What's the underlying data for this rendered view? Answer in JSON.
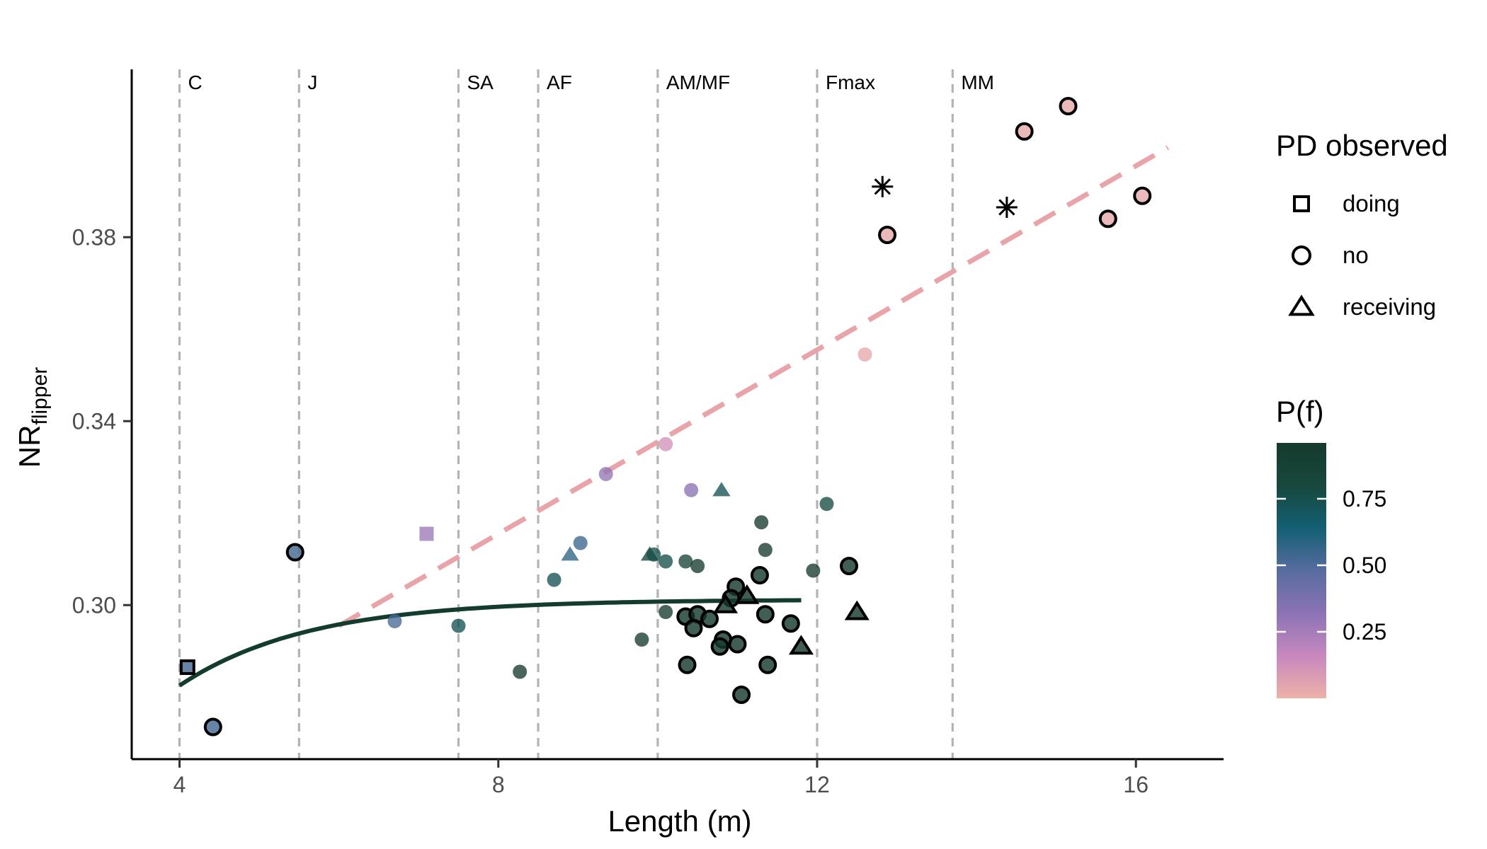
{
  "chart_data": {
    "type": "scatter",
    "xlabel": "Length (m)",
    "ylabel_main": "NR",
    "ylabel_sub": "flipper",
    "xlim": [
      3.4,
      17.1
    ],
    "ylim": [
      0.2665,
      0.4165
    ],
    "x_ticks": [
      4,
      8,
      12,
      16
    ],
    "y_ticks": [
      0.3,
      0.34,
      0.38
    ],
    "x_tick_labels": [
      "4",
      "8",
      "12",
      "16"
    ],
    "y_tick_labels": [
      "0.30",
      "0.34",
      "0.38"
    ],
    "grid": false,
    "stage_lines": [
      {
        "label": "C",
        "x": 4.0
      },
      {
        "label": "J",
        "x": 5.5
      },
      {
        "label": "SA",
        "x": 7.5
      },
      {
        "label": "AF",
        "x": 8.5
      },
      {
        "label": "AM/MF",
        "x": 10.0
      },
      {
        "label": "Fmax",
        "x": 12.0
      },
      {
        "label": "MM",
        "x": 13.7
      }
    ],
    "curve_female": {
      "x_start": 4.0,
      "x_end": 11.8,
      "asymptote": 0.3012,
      "y_start": 0.2825,
      "rate": 0.62,
      "color": "#133C2F"
    },
    "line_male": {
      "x": [
        6.0,
        16.4
      ],
      "y": [
        0.2955,
        0.3995
      ],
      "color": "#E8A4A8",
      "dashed": true
    },
    "points": [
      {
        "x": 4.1,
        "y": 0.2865,
        "shape": "doing",
        "p": 0.52,
        "outlined": true
      },
      {
        "x": 4.42,
        "y": 0.2735,
        "shape": "no",
        "p": 0.52,
        "outlined": true
      },
      {
        "x": 5.45,
        "y": 0.3115,
        "shape": "no",
        "p": 0.52,
        "outlined": true
      },
      {
        "x": 7.1,
        "y": 0.3155,
        "shape": "doing",
        "p": 0.28,
        "outlined": false
      },
      {
        "x": 6.7,
        "y": 0.2965,
        "shape": "no",
        "p": 0.52,
        "outlined": false
      },
      {
        "x": 7.5,
        "y": 0.2955,
        "shape": "no",
        "p": 0.73,
        "outlined": false
      },
      {
        "x": 8.27,
        "y": 0.2855,
        "shape": "no",
        "p": 0.96,
        "outlined": false
      },
      {
        "x": 8.7,
        "y": 0.3055,
        "shape": "no",
        "p": 0.73,
        "outlined": false
      },
      {
        "x": 8.9,
        "y": 0.311,
        "shape": "receiving",
        "p": 0.58,
        "outlined": false
      },
      {
        "x": 9.03,
        "y": 0.3135,
        "shape": "no",
        "p": 0.55,
        "outlined": false
      },
      {
        "x": 9.35,
        "y": 0.3285,
        "shape": "no",
        "p": 0.3,
        "outlined": false
      },
      {
        "x": 9.9,
        "y": 0.311,
        "shape": "receiving",
        "p": 0.85,
        "outlined": false
      },
      {
        "x": 9.95,
        "y": 0.311,
        "shape": "no",
        "p": 0.76,
        "outlined": false
      },
      {
        "x": 10.1,
        "y": 0.335,
        "shape": "no",
        "p": 0.12,
        "outlined": false
      },
      {
        "x": 10.1,
        "y": 0.3095,
        "shape": "no",
        "p": 0.76,
        "outlined": false
      },
      {
        "x": 10.35,
        "y": 0.3095,
        "shape": "no",
        "p": 0.85,
        "outlined": false
      },
      {
        "x": 10.5,
        "y": 0.3085,
        "shape": "no",
        "p": 0.96,
        "outlined": false
      },
      {
        "x": 10.42,
        "y": 0.325,
        "shape": "no",
        "p": 0.32,
        "outlined": false
      },
      {
        "x": 10.8,
        "y": 0.325,
        "shape": "receiving",
        "p": 0.73,
        "outlined": false
      },
      {
        "x": 9.8,
        "y": 0.2925,
        "shape": "no",
        "p": 0.96,
        "outlined": false
      },
      {
        "x": 10.1,
        "y": 0.2985,
        "shape": "no",
        "p": 0.96,
        "outlined": false
      },
      {
        "x": 11.3,
        "y": 0.318,
        "shape": "no",
        "p": 0.96,
        "outlined": false
      },
      {
        "x": 11.35,
        "y": 0.312,
        "shape": "no",
        "p": 0.96,
        "outlined": false
      },
      {
        "x": 11.95,
        "y": 0.3075,
        "shape": "no",
        "p": 0.96,
        "outlined": false
      },
      {
        "x": 12.12,
        "y": 0.322,
        "shape": "no",
        "p": 0.78,
        "outlined": false
      },
      {
        "x": 12.6,
        "y": 0.3545,
        "shape": "no",
        "p": 0.03,
        "outlined": false
      },
      {
        "x": 11.28,
        "y": 0.3065,
        "shape": "no",
        "p": 0.96,
        "outlined": true
      },
      {
        "x": 10.98,
        "y": 0.304,
        "shape": "no",
        "p": 0.96,
        "outlined": true
      },
      {
        "x": 10.92,
        "y": 0.3015,
        "shape": "no",
        "p": 0.96,
        "outlined": true
      },
      {
        "x": 10.85,
        "y": 0.3,
        "shape": "receiving",
        "p": 0.96,
        "outlined": true
      },
      {
        "x": 11.12,
        "y": 0.302,
        "shape": "receiving",
        "p": 0.96,
        "outlined": true
      },
      {
        "x": 10.35,
        "y": 0.2975,
        "shape": "no",
        "p": 0.96,
        "outlined": true
      },
      {
        "x": 10.5,
        "y": 0.298,
        "shape": "no",
        "p": 0.96,
        "outlined": true
      },
      {
        "x": 10.65,
        "y": 0.297,
        "shape": "no",
        "p": 0.96,
        "outlined": true
      },
      {
        "x": 10.45,
        "y": 0.295,
        "shape": "no",
        "p": 0.96,
        "outlined": true
      },
      {
        "x": 11.35,
        "y": 0.298,
        "shape": "no",
        "p": 0.96,
        "outlined": true
      },
      {
        "x": 11.67,
        "y": 0.296,
        "shape": "no",
        "p": 0.96,
        "outlined": true
      },
      {
        "x": 10.82,
        "y": 0.2925,
        "shape": "no",
        "p": 0.96,
        "outlined": true
      },
      {
        "x": 10.78,
        "y": 0.291,
        "shape": "no",
        "p": 0.96,
        "outlined": true
      },
      {
        "x": 11.0,
        "y": 0.2915,
        "shape": "no",
        "p": 0.96,
        "outlined": true
      },
      {
        "x": 10.37,
        "y": 0.287,
        "shape": "no",
        "p": 0.96,
        "outlined": true
      },
      {
        "x": 11.38,
        "y": 0.287,
        "shape": "no",
        "p": 0.96,
        "outlined": true
      },
      {
        "x": 11.05,
        "y": 0.2805,
        "shape": "no",
        "p": 0.96,
        "outlined": true
      },
      {
        "x": 11.8,
        "y": 0.291,
        "shape": "receiving",
        "p": 0.96,
        "outlined": true
      },
      {
        "x": 12.4,
        "y": 0.3085,
        "shape": "no",
        "p": 0.96,
        "outlined": true
      },
      {
        "x": 12.5,
        "y": 0.2985,
        "shape": "receiving",
        "p": 0.96,
        "outlined": true
      },
      {
        "x": 12.88,
        "y": 0.3805,
        "shape": "no",
        "p": 0.03,
        "outlined": true
      },
      {
        "x": 14.6,
        "y": 0.403,
        "shape": "no",
        "p": 0.03,
        "outlined": true
      },
      {
        "x": 15.15,
        "y": 0.4085,
        "shape": "no",
        "p": 0.03,
        "outlined": true
      },
      {
        "x": 15.65,
        "y": 0.384,
        "shape": "no",
        "p": 0.03,
        "outlined": true
      },
      {
        "x": 16.08,
        "y": 0.389,
        "shape": "no",
        "p": 0.03,
        "outlined": true
      }
    ],
    "star_markers": [
      {
        "x": 12.82,
        "y": 0.391
      },
      {
        "x": 14.38,
        "y": 0.3865
      }
    ],
    "legend_shape": {
      "title": "PD observed",
      "entries": [
        {
          "label": "doing",
          "shape": "doing"
        },
        {
          "label": "no",
          "shape": "no"
        },
        {
          "label": "receiving",
          "shape": "receiving"
        }
      ],
      "placement": "right"
    },
    "legend_color": {
      "title": "P(f)",
      "range": [
        0.0,
        0.96
      ],
      "ticks": [
        0.25,
        0.5,
        0.75
      ],
      "tick_labels": [
        "0.25",
        "0.50",
        "0.75"
      ],
      "gradient_stops": [
        "#EEB1A7",
        "#C788BE",
        "#8C73B5",
        "#576C9F",
        "#135F73",
        "#17483C",
        "#163A2E"
      ],
      "placement": "right"
    }
  }
}
